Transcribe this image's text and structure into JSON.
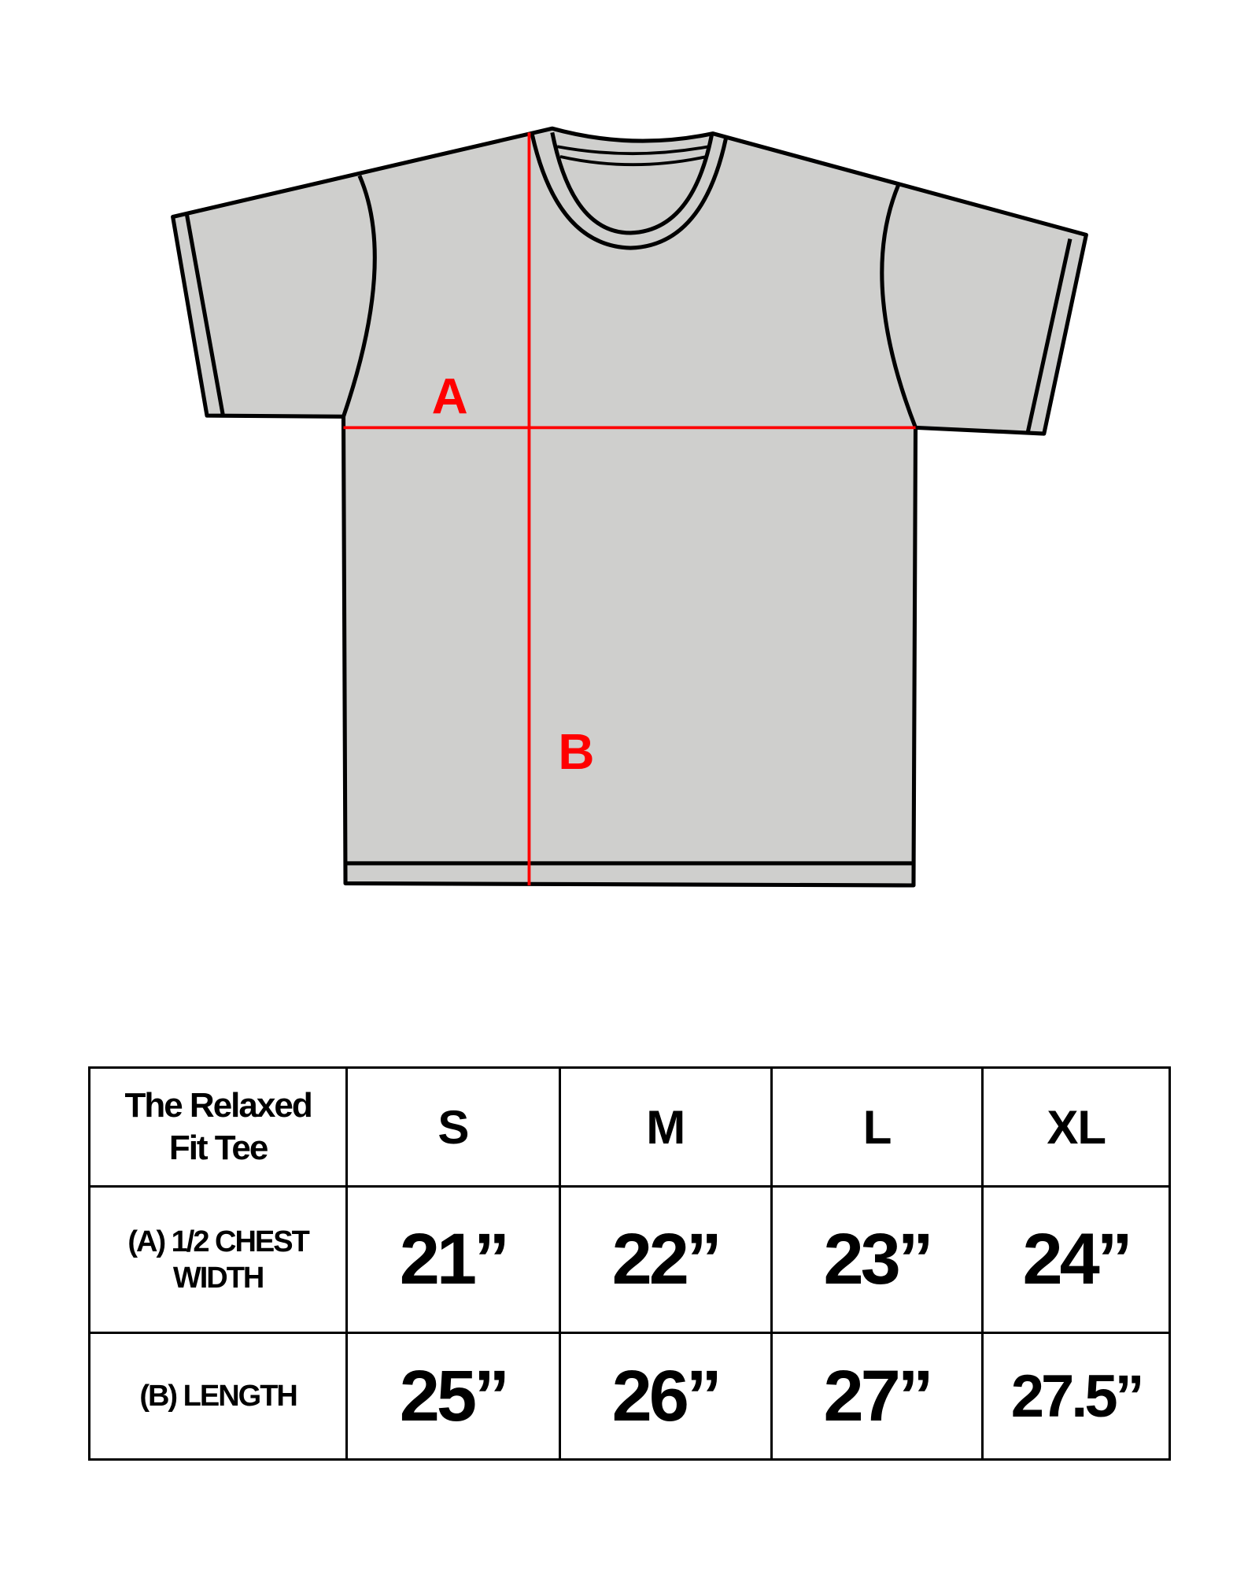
{
  "colors": {
    "shirt_fill": "#cfcfcd",
    "outline": "#000000",
    "measure_line": "#ff0000"
  },
  "diagram": {
    "label_a": "A",
    "label_b": "B"
  },
  "table": {
    "title_line1": "The Relaxed",
    "title_line2": "Fit Tee",
    "sizes": [
      "S",
      "M",
      "L",
      "XL"
    ],
    "rows": [
      {
        "label_line1": "(A) 1/2 CHEST",
        "label_line2": "WIDTH",
        "values": [
          "21”",
          "22”",
          "23”",
          "24”"
        ]
      },
      {
        "label_line1": "(B) LENGTH",
        "label_line2": "",
        "values": [
          "25”",
          "26”",
          "27”",
          "27.5”"
        ]
      }
    ]
  }
}
